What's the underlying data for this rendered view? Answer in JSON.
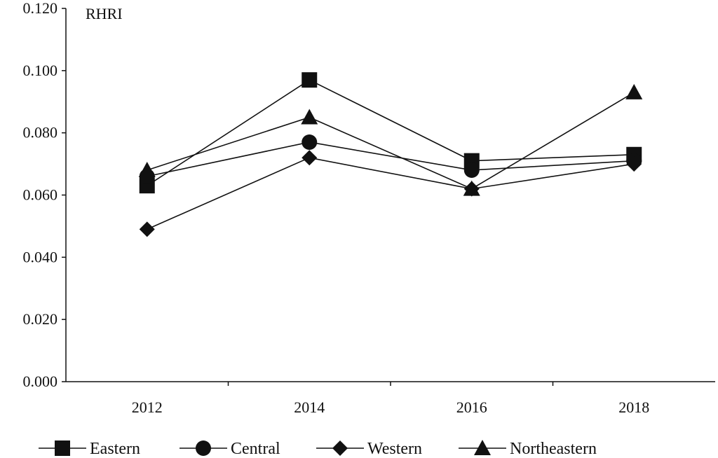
{
  "chart_data": {
    "type": "line",
    "ylabel": "RHRI",
    "categories": [
      "2012",
      "2014",
      "2016",
      "2018"
    ],
    "yticks": [
      "0.000",
      "0.020",
      "0.040",
      "0.060",
      "0.080",
      "0.100",
      "0.120"
    ],
    "ylim": [
      0,
      0.12
    ],
    "grid": false,
    "legend_position": "bottom",
    "series": [
      {
        "name": "Eastern",
        "marker": "square",
        "values": [
          0.063,
          0.097,
          0.071,
          0.073
        ]
      },
      {
        "name": "Central",
        "marker": "circle",
        "values": [
          0.066,
          0.077,
          0.068,
          0.071
        ]
      },
      {
        "name": "Western",
        "marker": "diamond",
        "values": [
          0.049,
          0.072,
          0.062,
          0.07
        ]
      },
      {
        "name": "Northeastern",
        "marker": "triangle",
        "values": [
          0.068,
          0.085,
          0.062,
          0.093
        ]
      }
    ]
  }
}
